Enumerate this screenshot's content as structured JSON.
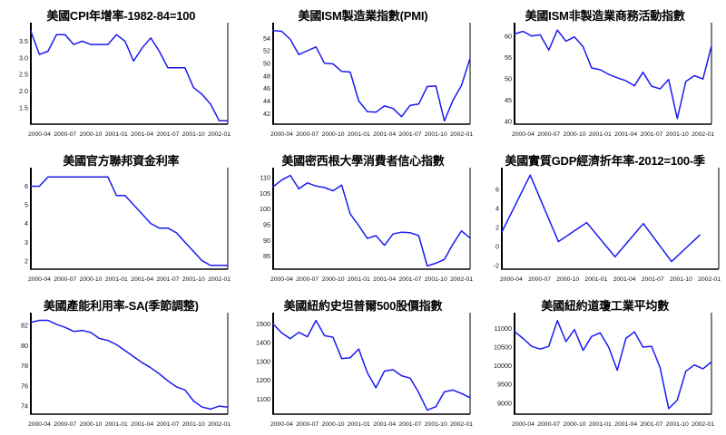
{
  "style": {
    "line_color": "#1a1af0",
    "axis_color": "#000000",
    "text_color": "#141414",
    "background": "#ffffff"
  },
  "chart_data": [
    {
      "type": "line",
      "title": "美國CPI年增率-1982-84=100",
      "y_tick_labels": [
        "3.5",
        "3.0",
        "2.5",
        "2.0",
        "1.5"
      ],
      "ylim": [
        1.0,
        3.95
      ],
      "x_tick_labels": [
        "2000-04",
        "2000-07",
        "2000-10",
        "2001-01",
        "2001-04",
        "2001-07",
        "2001-10",
        "2002-01"
      ],
      "x_tick_month_indices": [
        1,
        4,
        7,
        10,
        13,
        16,
        19,
        22
      ],
      "values": [
        3.8,
        3.1,
        3.2,
        3.7,
        3.7,
        3.4,
        3.5,
        3.4,
        3.4,
        3.4,
        3.7,
        3.5,
        2.9,
        3.3,
        3.6,
        3.2,
        2.7,
        2.7,
        2.7,
        2.1,
        1.9,
        1.6,
        1.1,
        1.1
      ]
    },
    {
      "type": "line",
      "title": "美國ISM製造業指數(PMI)",
      "y_tick_labels": [
        "54",
        "52",
        "50",
        "48",
        "46",
        "44",
        "42"
      ],
      "ylim": [
        40.3,
        55.9
      ],
      "x_tick_labels": [
        "2000-04",
        "2000-07",
        "2000-10",
        "2001-01",
        "2001-04",
        "2001-07",
        "2001-10",
        "2002-01"
      ],
      "x_tick_month_indices": [
        1,
        4,
        7,
        10,
        13,
        16,
        19,
        22
      ],
      "values": [
        55.2,
        55.1,
        53.8,
        51.4,
        52.0,
        52.6,
        50.0,
        49.9,
        48.7,
        48.6,
        44.0,
        42.3,
        42.2,
        43.2,
        42.8,
        41.5,
        43.3,
        43.5,
        46.3,
        46.4,
        40.8,
        44.1,
        46.5,
        50.8
      ]
    },
    {
      "type": "line",
      "title": "美國ISM非製造業商務活動指數",
      "y_tick_labels": [
        "60",
        "55",
        "50",
        "45",
        "40"
      ],
      "ylim": [
        39.3,
        62.3
      ],
      "x_tick_labels": [
        "2000-04",
        "2000-07",
        "2000-10",
        "2001-01",
        "2001-04",
        "2001-07",
        "2001-10",
        "2002-01"
      ],
      "x_tick_month_indices": [
        1,
        4,
        7,
        10,
        13,
        16,
        19,
        22
      ],
      "values": [
        60.5,
        61.1,
        60.0,
        60.3,
        56.7,
        61.4,
        58.8,
        59.8,
        57.5,
        52.5,
        52.1,
        51.0,
        50.2,
        49.5,
        48.3,
        51.5,
        48.2,
        47.6,
        49.8,
        40.6,
        49.3,
        50.7,
        49.9,
        57.7
      ]
    },
    {
      "type": "line",
      "title": "美國官方聯邦資金利率",
      "y_tick_labels": [
        "6",
        "5",
        "4",
        "3",
        "2"
      ],
      "ylim": [
        1.55,
        6.8
      ],
      "x_tick_labels": [
        "2000-04",
        "2000-07",
        "2000-10",
        "2001-01",
        "2001-04",
        "2001-07",
        "2001-10",
        "2002-01"
      ],
      "x_tick_month_indices": [
        1,
        4,
        7,
        10,
        13,
        16,
        19,
        22
      ],
      "values": [
        6.0,
        6.0,
        6.5,
        6.5,
        6.5,
        6.5,
        6.5,
        6.5,
        6.5,
        6.5,
        5.5,
        5.5,
        5.0,
        4.5,
        4.0,
        3.75,
        3.75,
        3.5,
        3.0,
        2.5,
        2.0,
        1.75,
        1.75,
        1.75
      ]
    },
    {
      "type": "line",
      "title": "美國密西根大學消費者信心指數",
      "y_tick_labels": [
        "110",
        "105",
        "100",
        "95",
        "90",
        "85"
      ],
      "ylim": [
        80.8,
        112.0
      ],
      "x_tick_labels": [
        "2000-04",
        "2000-07",
        "2000-10",
        "2001-01",
        "2001-04",
        "2001-07",
        "2001-10",
        "2002-01"
      ],
      "x_tick_month_indices": [
        1,
        4,
        7,
        10,
        13,
        16,
        19,
        22
      ],
      "values": [
        107.1,
        109.2,
        110.7,
        106.4,
        108.3,
        107.3,
        106.8,
        105.8,
        107.6,
        98.4,
        94.7,
        90.6,
        91.5,
        88.4,
        92.0,
        92.6,
        92.4,
        91.5,
        81.8,
        82.7,
        83.9,
        88.8,
        93.0,
        90.7
      ]
    },
    {
      "type": "line",
      "title": "美國實質GDP經濟折年率-2012=100-季",
      "y_tick_labels": [
        "6",
        "4",
        "2",
        "0",
        "-2"
      ],
      "ylim": [
        -2.4,
        7.9
      ],
      "x_tick_labels": [
        "2000-04",
        "2000-07",
        "2000-10",
        "2001-01",
        "2001-04",
        "2001-07",
        "2001-10",
        "2002-01"
      ],
      "x_tick_month_indices": [
        1,
        4,
        7,
        10,
        13,
        16,
        19,
        22
      ],
      "x_month_indices": [
        0,
        3,
        6,
        9,
        12,
        15,
        18,
        21
      ],
      "values": [
        1.5,
        7.5,
        0.5,
        2.5,
        -1.1,
        2.4,
        -1.6,
        1.2
      ]
    },
    {
      "type": "line",
      "title": "美國產能利用率-SA(季節調整)",
      "y_tick_labels": [
        "82",
        "80",
        "78",
        "76",
        "74"
      ],
      "ylim": [
        73.2,
        82.9
      ],
      "x_tick_labels": [
        "2000-04",
        "2000-07",
        "2000-10",
        "2001-01",
        "2001-04",
        "2001-07",
        "2001-10",
        "2002-01"
      ],
      "x_tick_month_indices": [
        1,
        4,
        7,
        10,
        13,
        16,
        19,
        22
      ],
      "values": [
        82.3,
        82.5,
        82.5,
        82.1,
        81.8,
        81.4,
        81.5,
        81.3,
        80.7,
        80.5,
        80.1,
        79.5,
        78.9,
        78.3,
        77.8,
        77.2,
        76.5,
        75.9,
        75.6,
        74.5,
        73.9,
        73.7,
        74.0,
        73.9
      ]
    },
    {
      "type": "line",
      "title": "美國紐約史坦普爾500股價指數",
      "y_tick_labels": [
        "1500",
        "1400",
        "1300",
        "1200",
        "1100"
      ],
      "ylim": [
        1020,
        1540
      ],
      "x_tick_labels": [
        "2000-04",
        "2000-07",
        "2000-10",
        "2001-01",
        "2001-04",
        "2001-07",
        "2001-10",
        "2002-01"
      ],
      "x_tick_month_indices": [
        1,
        4,
        7,
        10,
        13,
        16,
        19,
        22
      ],
      "values": [
        1499,
        1452,
        1421,
        1455,
        1431,
        1518,
        1437,
        1429,
        1315,
        1320,
        1366,
        1240,
        1160,
        1249,
        1256,
        1224,
        1211,
        1134,
        1041,
        1060,
        1139,
        1148,
        1130,
        1107
      ]
    },
    {
      "type": "line",
      "title": "美國紐約道瓊工業平均數",
      "y_tick_labels": [
        "11000",
        "10500",
        "10000",
        "9500",
        "9000"
      ],
      "ylim": [
        8700,
        11330
      ],
      "x_tick_labels": [
        "2000-04",
        "2000-07",
        "2000-10",
        "2001-01",
        "2001-04",
        "2001-07",
        "2001-10",
        "2002-01"
      ],
      "x_tick_month_indices": [
        1,
        4,
        7,
        10,
        13,
        16,
        19,
        22
      ],
      "values": [
        10922,
        10734,
        10522,
        10448,
        10522,
        11215,
        10651,
        10971,
        10414,
        10787,
        10887,
        10495,
        9879,
        10735,
        10912,
        10502,
        10523,
        9950,
        8848,
        9075,
        9852,
        10022,
        9920,
        10106
      ]
    }
  ]
}
